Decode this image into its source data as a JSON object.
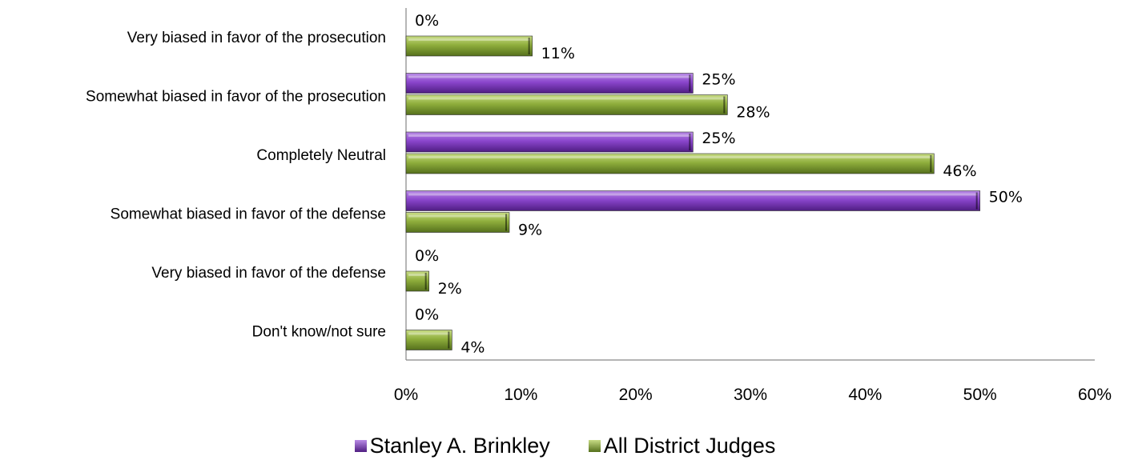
{
  "chart_data": {
    "type": "bar",
    "orientation": "horizontal",
    "categories": [
      "Very biased in favor of the prosecution",
      "Somewhat biased in favor of the prosecution",
      "Completely Neutral",
      "Somewhat biased in favor of the defense",
      "Very biased in favor of the defense",
      "Don't know/not sure"
    ],
    "series": [
      {
        "name": "Stanley A. Brinkley",
        "color": "#7a33b8",
        "values": [
          0,
          25,
          25,
          50,
          0,
          0
        ],
        "labels": [
          "0%",
          "25%",
          "25%",
          "50%",
          "0%",
          "0%"
        ]
      },
      {
        "name": "All District Judges",
        "color": "#7f9a2e",
        "values": [
          11,
          28,
          46,
          9,
          2,
          4
        ],
        "labels": [
          "11%",
          "28%",
          "46%",
          "9%",
          "2%",
          "4%"
        ]
      }
    ],
    "xlim": [
      0,
      60
    ],
    "xticks": [
      "0%",
      "10%",
      "20%",
      "30%",
      "40%",
      "50%",
      "60%"
    ],
    "grid": false,
    "legend_position": "bottom"
  }
}
